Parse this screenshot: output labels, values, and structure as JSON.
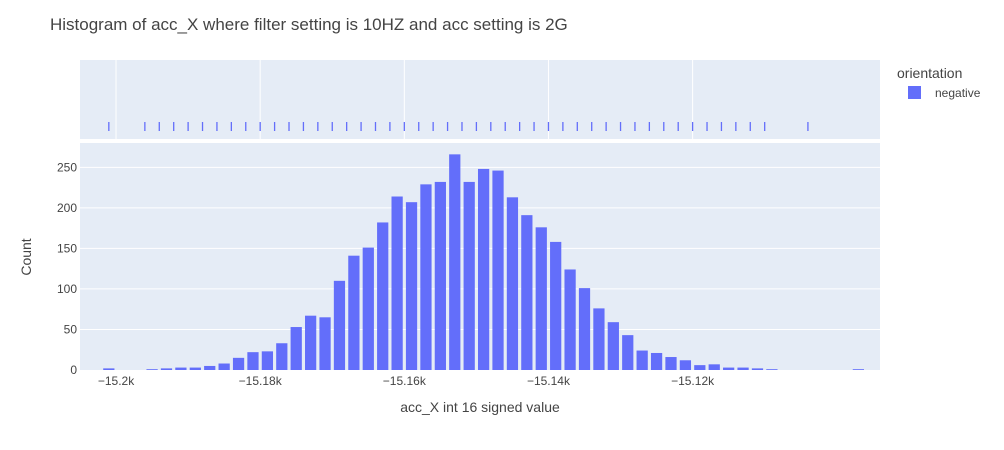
{
  "chart_data": {
    "type": "bar",
    "title": "Histogram of acc_X where filter setting is 10HZ and acc setting is 2G",
    "xlabel": "acc_X int 16 signed value",
    "ylabel": "Count",
    "xlim": [
      -15205,
      -15094
    ],
    "ylim": [
      0,
      280
    ],
    "x_ticks": [
      -15200,
      -15180,
      -15160,
      -15140,
      -15120
    ],
    "x_tick_labels": [
      "−15.2k",
      "−15.18k",
      "−15.16k",
      "−15.14k",
      "−15.12k"
    ],
    "y_ticks": [
      0,
      50,
      100,
      150,
      200,
      250
    ],
    "grid": true,
    "legend": {
      "title": "orientation",
      "position": "top-right",
      "entries": [
        "negative"
      ]
    },
    "series": [
      {
        "name": "negative",
        "color": "#636efa",
        "x": [
          -15201,
          -15199,
          -15197,
          -15195,
          -15193,
          -15191,
          -15189,
          -15187,
          -15185,
          -15183,
          -15181,
          -15179,
          -15177,
          -15175,
          -15173,
          -15171,
          -15169,
          -15167,
          -15165,
          -15163,
          -15161,
          -15159,
          -15157,
          -15155,
          -15153,
          -15151,
          -15149,
          -15147,
          -15145,
          -15143,
          -15141,
          -15139,
          -15137,
          -15135,
          -15133,
          -15131,
          -15129,
          -15127,
          -15125,
          -15123,
          -15121,
          -15119,
          -15117,
          -15115,
          -15113,
          -15111,
          -15109,
          -15107,
          -15105,
          -15103,
          -15101,
          -15099,
          -15097
        ],
        "values": [
          2,
          0,
          0,
          1,
          2,
          3,
          3,
          5,
          8,
          15,
          22,
          23,
          33,
          53,
          67,
          65,
          110,
          141,
          151,
          182,
          214,
          207,
          229,
          232,
          266,
          232,
          248,
          246,
          213,
          191,
          176,
          158,
          124,
          101,
          76,
          59,
          43,
          24,
          21,
          16,
          12,
          6,
          7,
          3,
          3,
          2,
          1,
          0,
          0,
          0,
          0,
          0,
          1
        ],
        "rug": [
          -15201,
          -15196,
          -15194,
          -15192,
          -15190,
          -15188,
          -15186,
          -15184,
          -15182,
          -15180,
          -15178,
          -15176,
          -15174,
          -15172,
          -15170,
          -15168,
          -15166,
          -15164,
          -15162,
          -15160,
          -15158,
          -15156,
          -15154,
          -15152,
          -15150,
          -15148,
          -15146,
          -15144,
          -15142,
          -15140,
          -15138,
          -15136,
          -15134,
          -15132,
          -15130,
          -15128,
          -15126,
          -15124,
          -15122,
          -15120,
          -15118,
          -15116,
          -15114,
          -15112,
          -15110,
          -15104
        ]
      }
    ]
  }
}
